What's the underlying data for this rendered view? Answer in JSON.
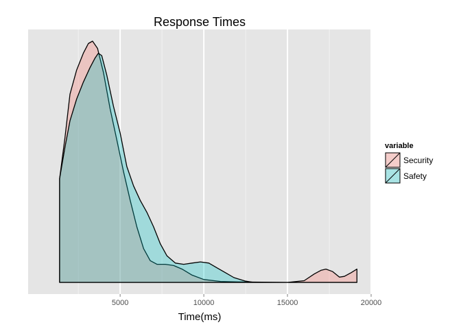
{
  "chart_data": {
    "type": "area",
    "title": "Response Times",
    "xlabel": "Time(ms)",
    "ylabel": "",
    "xlim": [
      -500,
      20000
    ],
    "x_ticks": [
      5000,
      10000,
      15000,
      20000
    ],
    "y_ticks": [],
    "grid": true,
    "legend": {
      "title": "variable",
      "position": "right"
    },
    "series": [
      {
        "name": "Security",
        "color": "#F8766D",
        "points": [
          [
            1380,
            0.43
          ],
          [
            1700,
            0.6
          ],
          [
            2000,
            0.78
          ],
          [
            2400,
            0.88
          ],
          [
            2800,
            0.95
          ],
          [
            3100,
            0.99
          ],
          [
            3350,
            1.0
          ],
          [
            3650,
            0.97
          ],
          [
            4000,
            0.87
          ],
          [
            4400,
            0.72
          ],
          [
            4800,
            0.59
          ],
          [
            5200,
            0.46
          ],
          [
            5600,
            0.34
          ],
          [
            6000,
            0.23
          ],
          [
            6400,
            0.14
          ],
          [
            6800,
            0.09
          ],
          [
            7200,
            0.075
          ],
          [
            7700,
            0.075
          ],
          [
            8200,
            0.07
          ],
          [
            8700,
            0.055
          ],
          [
            9300,
            0.03
          ],
          [
            10000,
            0.012
          ],
          [
            11000,
            0.004
          ],
          [
            12000,
            0.002
          ],
          [
            15000,
            0.0
          ],
          [
            16000,
            0.007
          ],
          [
            16600,
            0.035
          ],
          [
            17000,
            0.05
          ],
          [
            17300,
            0.055
          ],
          [
            17700,
            0.045
          ],
          [
            18100,
            0.022
          ],
          [
            18400,
            0.025
          ],
          [
            18800,
            0.04
          ],
          [
            19150,
            0.055
          ]
        ]
      },
      {
        "name": "Safety",
        "color": "#00BFC4",
        "points": [
          [
            1380,
            0.43
          ],
          [
            1700,
            0.56
          ],
          [
            2000,
            0.67
          ],
          [
            2400,
            0.76
          ],
          [
            2800,
            0.83
          ],
          [
            3200,
            0.89
          ],
          [
            3500,
            0.93
          ],
          [
            3700,
            0.95
          ],
          [
            3900,
            0.94
          ],
          [
            4200,
            0.86
          ],
          [
            4600,
            0.73
          ],
          [
            5000,
            0.62
          ],
          [
            5400,
            0.48
          ],
          [
            5800,
            0.4
          ],
          [
            6200,
            0.34
          ],
          [
            6600,
            0.29
          ],
          [
            7000,
            0.23
          ],
          [
            7400,
            0.16
          ],
          [
            7800,
            0.11
          ],
          [
            8300,
            0.08
          ],
          [
            8800,
            0.075
          ],
          [
            9300,
            0.08
          ],
          [
            9800,
            0.085
          ],
          [
            10300,
            0.08
          ],
          [
            10800,
            0.06
          ],
          [
            11300,
            0.04
          ],
          [
            11800,
            0.02
          ],
          [
            12500,
            0.005
          ],
          [
            13000,
            0.0
          ],
          [
            19150,
            0.0
          ]
        ]
      }
    ]
  }
}
